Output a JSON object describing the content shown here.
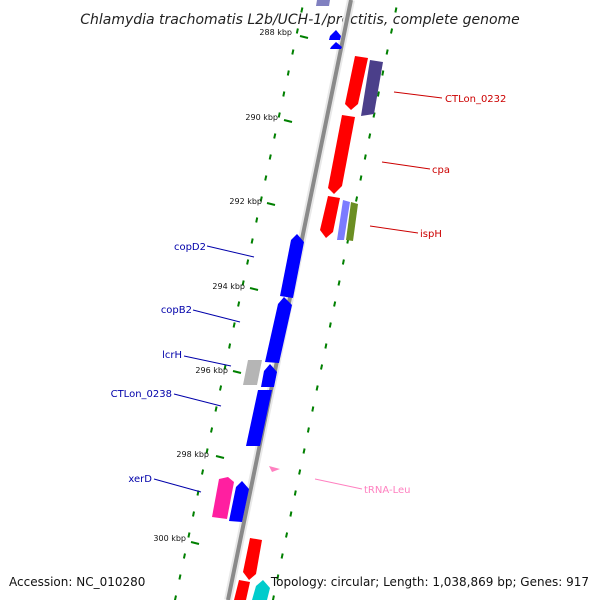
{
  "title": "Chlamydia trachomatis L2b/UCH-1/proctitis, complete genome",
  "footer": {
    "accession": "Accession: NC_010280",
    "info": "Topology: circular; Length: 1,038,869 bp; Genes: 917"
  },
  "ticks": [
    {
      "label": "288 kbp"
    },
    {
      "label": "290 kbp"
    },
    {
      "label": "292 kbp"
    },
    {
      "label": "294 kbp"
    },
    {
      "label": "296 kbp"
    },
    {
      "label": "298 kbp"
    },
    {
      "label": "300 kbp"
    }
  ],
  "colors": {
    "forward": "#0000ff",
    "reverse": "#ff0000",
    "slate": "#4b3f8a",
    "gray": "#b0b0b0",
    "magenta": "#ff1fa0",
    "lightblue": "#7b7bff",
    "olive": "#6b8e23",
    "cyan": "#00cccc",
    "trna": "#ff80c0",
    "scale": "#008000"
  },
  "genes": [
    {
      "name": "CTLon_0232",
      "color": "#cc0000"
    },
    {
      "name": "cpa",
      "color": "#cc0000"
    },
    {
      "name": "ispH",
      "color": "#cc0000"
    },
    {
      "name": "copD2",
      "color": "#0000aa"
    },
    {
      "name": "copB2",
      "color": "#0000aa"
    },
    {
      "name": "lcrH",
      "color": "#0000aa"
    },
    {
      "name": "CTLon_0238",
      "color": "#0000aa"
    },
    {
      "name": "xerD",
      "color": "#0000aa"
    },
    {
      "name": "tRNA-Leu",
      "color": "#ff80c0"
    }
  ]
}
